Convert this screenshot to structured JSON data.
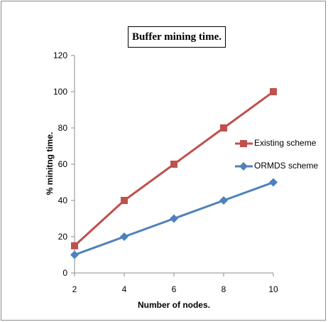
{
  "chart_data": {
    "type": "line",
    "title": "Buffer mining time.",
    "xlabel": "Number of nodes.",
    "ylabel": "% minitng time.",
    "x": [
      2,
      4,
      6,
      8,
      10
    ],
    "ylim": [
      0,
      120
    ],
    "yticks": [
      0,
      20,
      40,
      60,
      80,
      100,
      120
    ],
    "grid": false,
    "legend_position": "right",
    "series": [
      {
        "name": "Existing scheme",
        "values": [
          15,
          40,
          60,
          80,
          100
        ],
        "color": "#c0504d",
        "marker": "square"
      },
      {
        "name": "ORMDS scheme",
        "values": [
          10,
          20,
          30,
          40,
          50
        ],
        "color": "#4f81bd",
        "marker": "diamond"
      }
    ]
  }
}
